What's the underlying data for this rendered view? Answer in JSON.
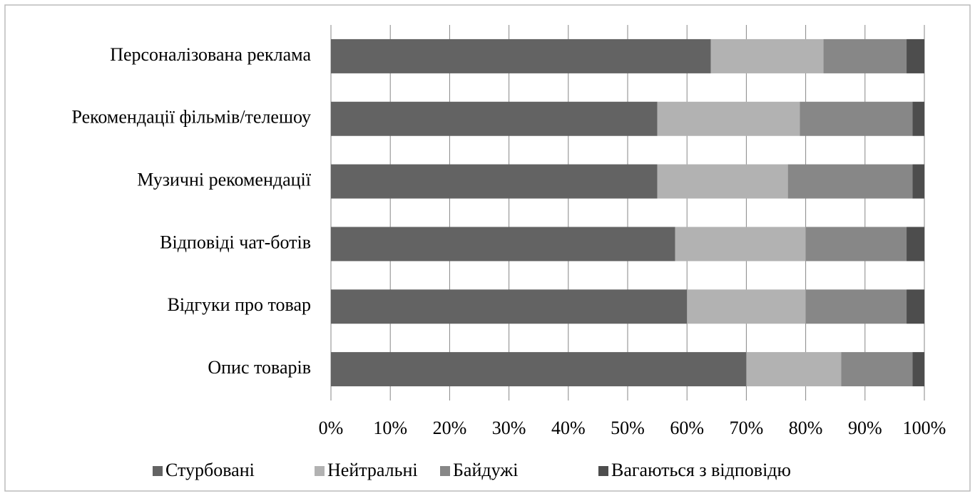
{
  "chart_data": {
    "type": "stacked-bar-horizontal",
    "categories": [
      "Персоналізована реклама",
      "Рекомендації фільмів/телешоу",
      "Музичні рекомендації",
      "Відповіді чат-ботів",
      "Відгуки про товар",
      "Опис товарів"
    ],
    "series": [
      {
        "name": "Стурбовані",
        "color": "#636363",
        "values": [
          64,
          55,
          55,
          58,
          60,
          70
        ]
      },
      {
        "name": "Нейтральні",
        "color": "#b2b2b2",
        "values": [
          19,
          24,
          22,
          22,
          20,
          16
        ]
      },
      {
        "name": "Байдужі",
        "color": "#878787",
        "values": [
          14,
          19,
          21,
          17,
          17,
          12
        ]
      },
      {
        "name": "Вагаються з відповідю",
        "color": "#4d4d4d",
        "values": [
          3,
          2,
          2,
          3,
          3,
          2
        ]
      }
    ],
    "xlim": [
      0,
      100
    ],
    "xticks": [
      {
        "value": 0,
        "label": "0%"
      },
      {
        "value": 10,
        "label": "10%"
      },
      {
        "value": 20,
        "label": "20%"
      },
      {
        "value": 30,
        "label": "30%"
      },
      {
        "value": 40,
        "label": "40%"
      },
      {
        "value": 50,
        "label": "50%"
      },
      {
        "value": 60,
        "label": "60%"
      },
      {
        "value": 70,
        "label": "70%"
      },
      {
        "value": 80,
        "label": "80%"
      },
      {
        "value": 90,
        "label": "90%"
      },
      {
        "value": 100,
        "label": "100%"
      }
    ],
    "grid": true,
    "legend": "bottom"
  }
}
